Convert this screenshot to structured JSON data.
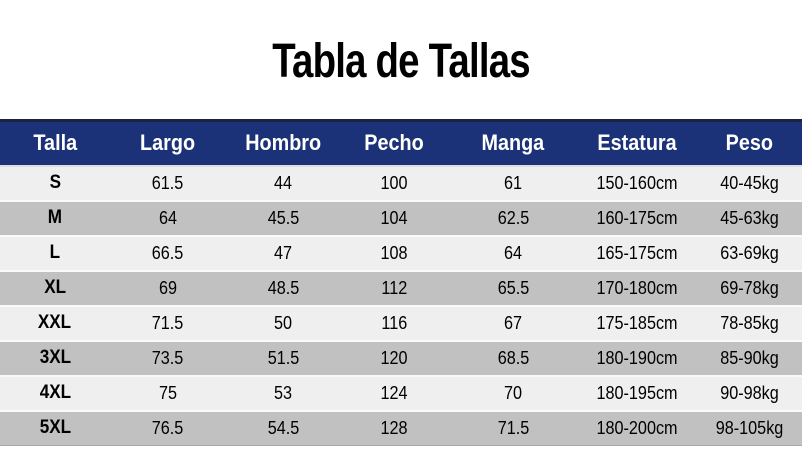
{
  "title": "Tabla de Tallas",
  "chart_data": {
    "type": "table",
    "title": "Tabla de Tallas",
    "columns": [
      "Talla",
      "Largo",
      "Hombro",
      "Pecho",
      "Manga",
      "Estatura",
      "Peso"
    ],
    "rows": [
      [
        "S",
        "61.5",
        "44",
        "100",
        "61",
        "150-160cm",
        "40-45kg"
      ],
      [
        "M",
        "64",
        "45.5",
        "104",
        "62.5",
        "160-175cm",
        "45-63kg"
      ],
      [
        "L",
        "66.5",
        "47",
        "108",
        "64",
        "165-175cm",
        "63-69kg"
      ],
      [
        "XL",
        "69",
        "48.5",
        "112",
        "65.5",
        "170-180cm",
        "69-78kg"
      ],
      [
        "XXL",
        "71.5",
        "50",
        "116",
        "67",
        "175-185cm",
        "78-85kg"
      ],
      [
        "3XL",
        "73.5",
        "51.5",
        "120",
        "68.5",
        "180-190cm",
        "85-90kg"
      ],
      [
        "4XL",
        "75",
        "53",
        "124",
        "70",
        "180-195cm",
        "90-98kg"
      ],
      [
        "5XL",
        "76.5",
        "54.5",
        "128",
        "71.5",
        "180-200cm",
        "98-105kg"
      ]
    ]
  },
  "colors": {
    "header_bg": "#1c3278",
    "header_text": "#ffffff",
    "row_light": "#efefef",
    "row_dark": "#c1c1c1",
    "title_text": "#000000"
  }
}
